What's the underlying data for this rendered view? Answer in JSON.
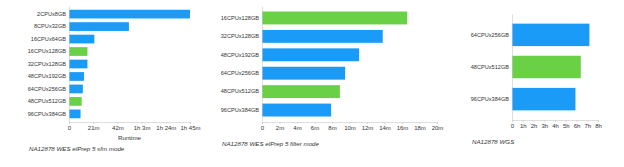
{
  "chart_data": [
    {
      "type": "bar",
      "orientation": "horizontal",
      "grid": false,
      "title": "NA12878 WES elPrep 5 sfm mode",
      "x_label": "Runtime",
      "categories": [
        "2CPUx8GB",
        "8CPUx32GB",
        "16CPUx64GB",
        "16CPUx128GB",
        "32CPUx128GB",
        "48CPUx192GB",
        "64CPUx256GB",
        "48CPUx512GB",
        "96CPUx384GB"
      ],
      "values": [
        105,
        52,
        22,
        16,
        16,
        13,
        12,
        11,
        10
      ],
      "colors": [
        "#1a9bf7",
        "#1a9bf7",
        "#1a9bf7",
        "#6ad046",
        "#1a9bf7",
        "#1a9bf7",
        "#1a9bf7",
        "#6ad046",
        "#1a9bf7"
      ],
      "xlim": [
        0,
        105
      ],
      "xticks": [
        0,
        {
          "value": 21,
          "label": "21m"
        },
        {
          "value": 42,
          "label": "42m"
        },
        {
          "value": 63,
          "label": "1h 3m"
        },
        {
          "value": 84,
          "label": "1h 24m"
        },
        {
          "value": 105,
          "label": "1h 45m"
        }
      ]
    },
    {
      "type": "bar",
      "orientation": "horizontal",
      "grid": false,
      "title": "NA12878 WES elPrep 5 filter mode",
      "categories": [
        "16CPUx128GB",
        "32CPUx128GB",
        "48CPUx192GB",
        "64CPUx256GB",
        "48CPUx512GB",
        "96CPUx384GB"
      ],
      "values": [
        16.6,
        13.8,
        11.1,
        9.5,
        8.9,
        7.9
      ],
      "colors": [
        "#6ad046",
        "#1a9bf7",
        "#1a9bf7",
        "#1a9bf7",
        "#6ad046",
        "#1a9bf7"
      ],
      "xlim": [
        0,
        20
      ],
      "xticks": [
        0,
        {
          "value": 2,
          "label": "2m"
        },
        {
          "value": 4,
          "label": "4m"
        },
        {
          "value": 6,
          "label": "6m"
        },
        {
          "value": 8,
          "label": "8m"
        },
        {
          "value": 10,
          "label": "10m"
        },
        {
          "value": 12,
          "label": "12m"
        },
        {
          "value": 14,
          "label": "14m"
        },
        {
          "value": 16,
          "label": "16m"
        },
        {
          "value": 18,
          "label": "18m"
        },
        {
          "value": 20,
          "label": "20m"
        }
      ]
    },
    {
      "type": "bar",
      "orientation": "horizontal",
      "grid": false,
      "title": "NA12878 WGS",
      "categories": [
        "64CPUx256GB",
        "48CPUx512GB",
        "96CPUx384GB"
      ],
      "values": [
        7.2,
        6.4,
        5.9
      ],
      "colors": [
        "#1a9bf7",
        "#6ad046",
        "#1a9bf7"
      ],
      "xlim": [
        0,
        8
      ],
      "xticks": [
        0,
        {
          "value": 1,
          "label": "1h"
        },
        {
          "value": 2,
          "label": "2h"
        },
        {
          "value": 3,
          "label": "3h"
        },
        {
          "value": 4,
          "label": "4h"
        },
        {
          "value": 5,
          "label": "5h"
        },
        {
          "value": 6,
          "label": "6h"
        },
        {
          "value": 7,
          "label": "7h"
        },
        {
          "value": 8,
          "label": "8h"
        }
      ]
    }
  ]
}
